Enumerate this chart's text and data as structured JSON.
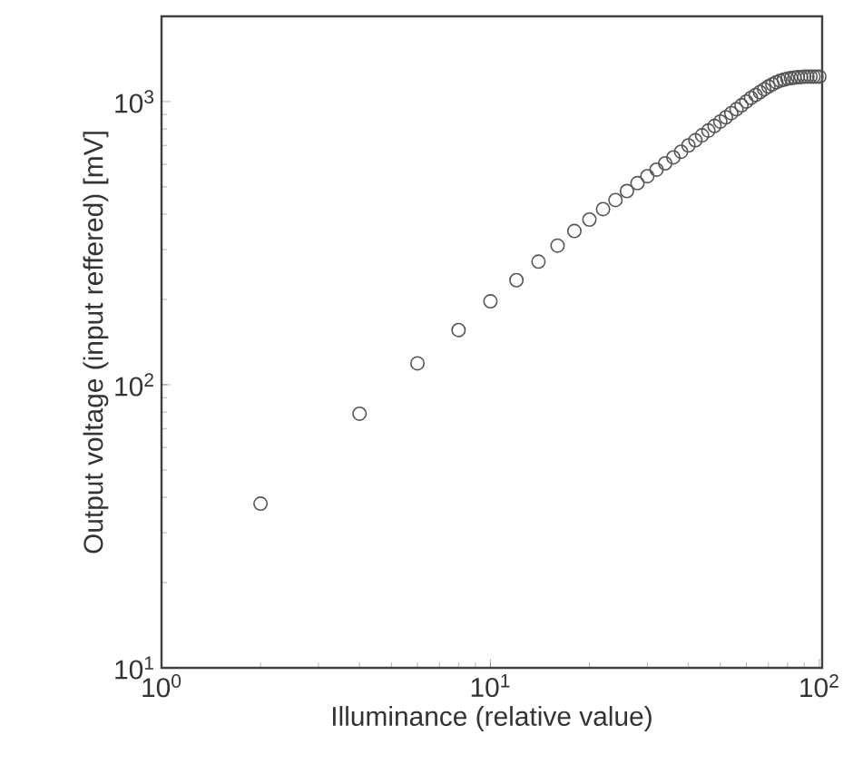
{
  "chart_data": {
    "type": "scatter",
    "xlabel": "Illuminance (relative value)",
    "ylabel": "Output voltage (input reffered) [mV]",
    "log": "xy",
    "marker": "circle",
    "xlim": [
      1,
      102
    ],
    "ylim": [
      10,
      2000
    ],
    "xticks": [
      {
        "value": 1,
        "label": "10$^{0}$"
      },
      {
        "value": 10,
        "label": "10$^{1}$"
      },
      {
        "value": 100,
        "label": "10$^{2}$"
      }
    ],
    "yticks": [
      {
        "value": 10,
        "label": "10$^{1}$"
      },
      {
        "value": 100,
        "label": "10$^{2}$"
      },
      {
        "value": 1000,
        "label": "10$^{3}$"
      }
    ],
    "x": [
      2,
      4,
      6,
      8,
      10,
      12,
      14,
      16,
      18,
      20,
      22,
      24,
      26,
      28,
      30,
      32,
      34,
      36,
      38,
      40,
      42,
      44,
      46,
      48,
      50,
      52,
      54,
      56,
      58,
      60,
      62,
      64,
      66,
      68,
      70,
      72,
      74,
      76,
      78,
      80,
      82,
      84,
      86,
      88,
      90,
      92,
      94,
      96,
      98,
      100
    ],
    "series": [
      {
        "color": "#555555",
        "values": [
          38,
          79,
          119,
          156,
          197,
          234,
          272,
          310,
          349,
          383,
          417,
          449,
          483,
          515,
          545,
          575,
          605,
          635,
          665,
          700,
          730,
          760,
          790,
          820,
          850,
          880,
          910,
          940,
          970,
          1000,
          1030,
          1055,
          1080,
          1105,
          1130,
          1150,
          1170,
          1185,
          1195,
          1205,
          1210,
          1215,
          1220,
          1220,
          1225,
          1225,
          1225,
          1225,
          1225,
          1225
        ]
      }
    ]
  }
}
